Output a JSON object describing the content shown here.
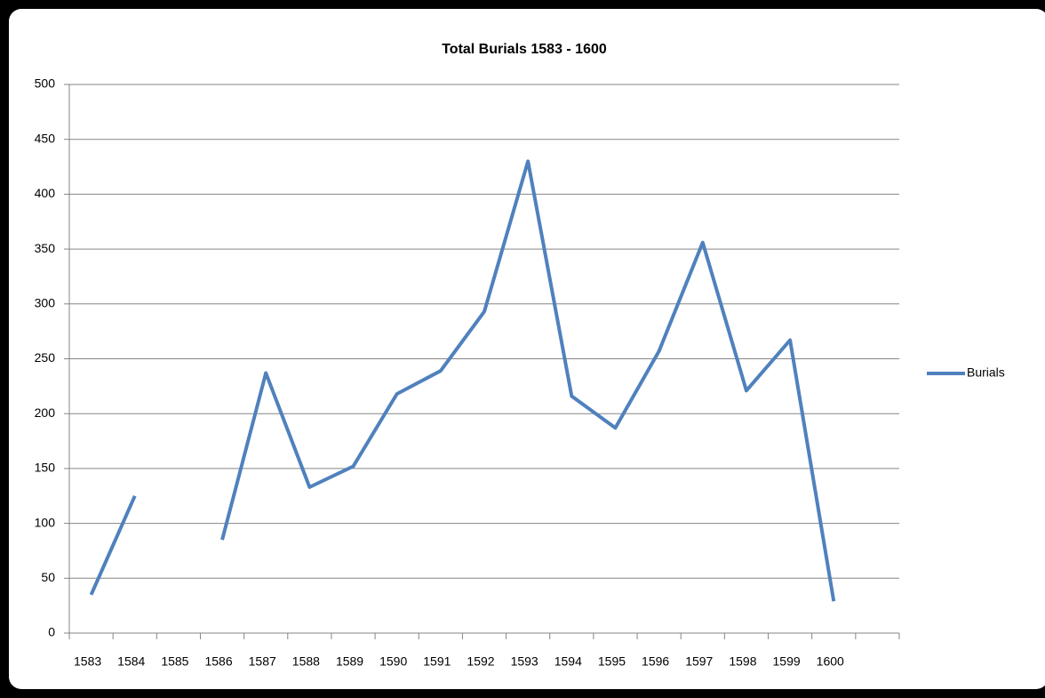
{
  "chart_data": {
    "type": "line",
    "title": "Total Burials 1583 - 1600",
    "categories": [
      "1583",
      "1584",
      "1585",
      "1586",
      "1587",
      "1588",
      "1589",
      "1590",
      "1591",
      "1592",
      "1593",
      "1594",
      "1595",
      "1596",
      "1597",
      "1598",
      "1599",
      "1600",
      null
    ],
    "series": [
      {
        "name": "Burials",
        "color": "#4f81bd",
        "values": [
          35,
          125,
          null,
          85,
          237,
          133,
          152,
          218,
          239,
          293,
          430,
          216,
          187,
          257,
          356,
          221,
          267,
          29,
          null
        ]
      }
    ],
    "ylim": [
      0,
      500
    ],
    "yticks": [
      0,
      50,
      100,
      150,
      200,
      250,
      300,
      350,
      400,
      450,
      500
    ],
    "grid": true,
    "legend": "right"
  }
}
